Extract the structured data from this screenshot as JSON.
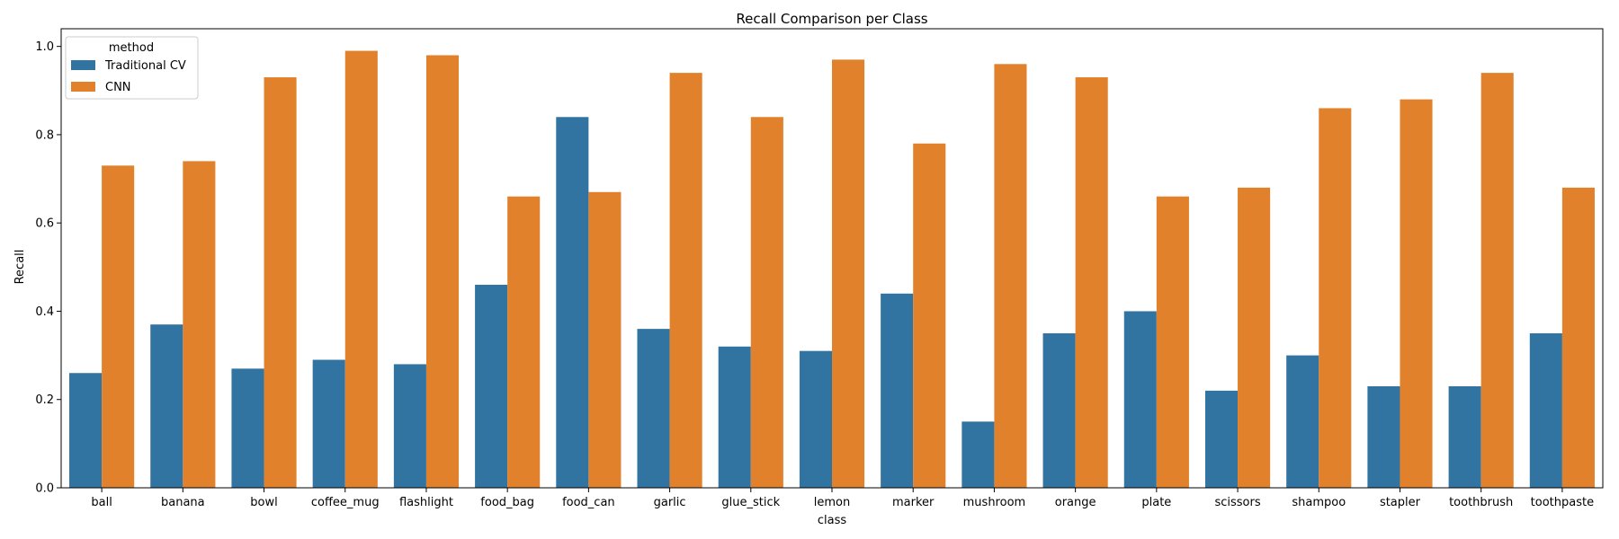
{
  "chart_data": {
    "type": "bar",
    "title": "Recall Comparison per Class",
    "xlabel": "class",
    "ylabel": "Recall",
    "ylim": [
      0,
      1.04
    ],
    "yticks": [
      0.0,
      0.2,
      0.4,
      0.6,
      0.8,
      1.0
    ],
    "ytick_labels": [
      "0.0",
      "0.2",
      "0.4",
      "0.6",
      "0.8",
      "1.0"
    ],
    "grid": false,
    "legend": {
      "title": "method",
      "placement": "top-left"
    },
    "categories": [
      "ball",
      "banana",
      "bowl",
      "coffee_mug",
      "flashlight",
      "food_bag",
      "food_can",
      "garlic",
      "glue_stick",
      "lemon",
      "marker",
      "mushroom",
      "orange",
      "plate",
      "scissors",
      "shampoo",
      "stapler",
      "toothbrush",
      "toothpaste"
    ],
    "series": [
      {
        "name": "Traditional CV",
        "color": "#3274a1",
        "values": [
          0.26,
          0.37,
          0.27,
          0.29,
          0.28,
          0.46,
          0.84,
          0.36,
          0.32,
          0.31,
          0.44,
          0.15,
          0.35,
          0.4,
          0.22,
          0.3,
          0.23,
          0.23,
          0.35
        ]
      },
      {
        "name": "CNN",
        "color": "#e1812c",
        "values": [
          0.73,
          0.74,
          0.93,
          0.99,
          0.98,
          0.66,
          0.67,
          0.94,
          0.84,
          0.97,
          0.78,
          0.96,
          0.93,
          0.66,
          0.68,
          0.86,
          0.88,
          0.94,
          0.68
        ]
      }
    ]
  }
}
